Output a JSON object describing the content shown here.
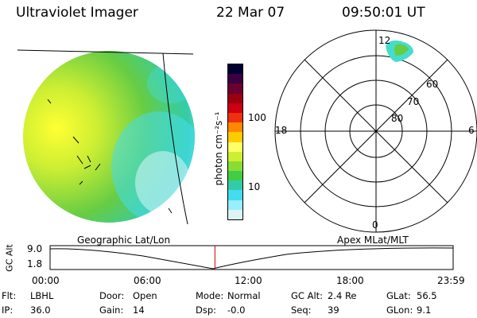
{
  "header": {
    "instrument": "Ultraviolet Imager",
    "date": "22 Mar 07",
    "time": "09:50:01 UT"
  },
  "colorbar": {
    "unit_label": "photon cm⁻²s⁻¹",
    "tick_labels": [
      "100",
      "10"
    ],
    "colors": [
      "#000033",
      "#3a0040",
      "#6a0030",
      "#9a0010",
      "#cc0010",
      "#ee3010",
      "#ff8800",
      "#ffcc00",
      "#ffff66",
      "#ccee33",
      "#88dd33",
      "#44cc44",
      "#33ccaa",
      "#44ddee",
      "#99eeff",
      "#ddf4f4"
    ]
  },
  "polar_plot": {
    "mlt_labels": {
      "top": "12",
      "left": "18",
      "right": "6",
      "bottom": "0"
    },
    "lat_labels": [
      "60",
      "70",
      "80"
    ]
  },
  "timeline": {
    "y_axis_label": "GC Alt",
    "y_ticks": [
      "9.0",
      "1.8"
    ],
    "left_caption": "Geographic Lat/Lon",
    "right_caption": "Apex MLat/MLT",
    "x_ticks": [
      "00:00",
      "06:00",
      "12:00",
      "18:00",
      "23:59"
    ],
    "current_time_fraction": 0.409
  },
  "info": {
    "rows": [
      [
        {
          "label": "Flt:",
          "value": "LBHL"
        },
        {
          "label": "Door:",
          "value": "Open"
        },
        {
          "label": "Mode:",
          "value": "Normal"
        },
        {
          "label": "GC Alt:",
          "value": "2.4 Re"
        },
        {
          "label": "GLat:",
          "value": "56.5"
        }
      ],
      [
        {
          "label": "IP:",
          "value": "36.0"
        },
        {
          "label": "Gain:",
          "value": "14"
        },
        {
          "label": "Dsp:",
          "value": "-0.0"
        },
        {
          "label": "Seq:",
          "value": "39"
        },
        {
          "label": "GLon:",
          "value": "9.1"
        }
      ]
    ]
  }
}
